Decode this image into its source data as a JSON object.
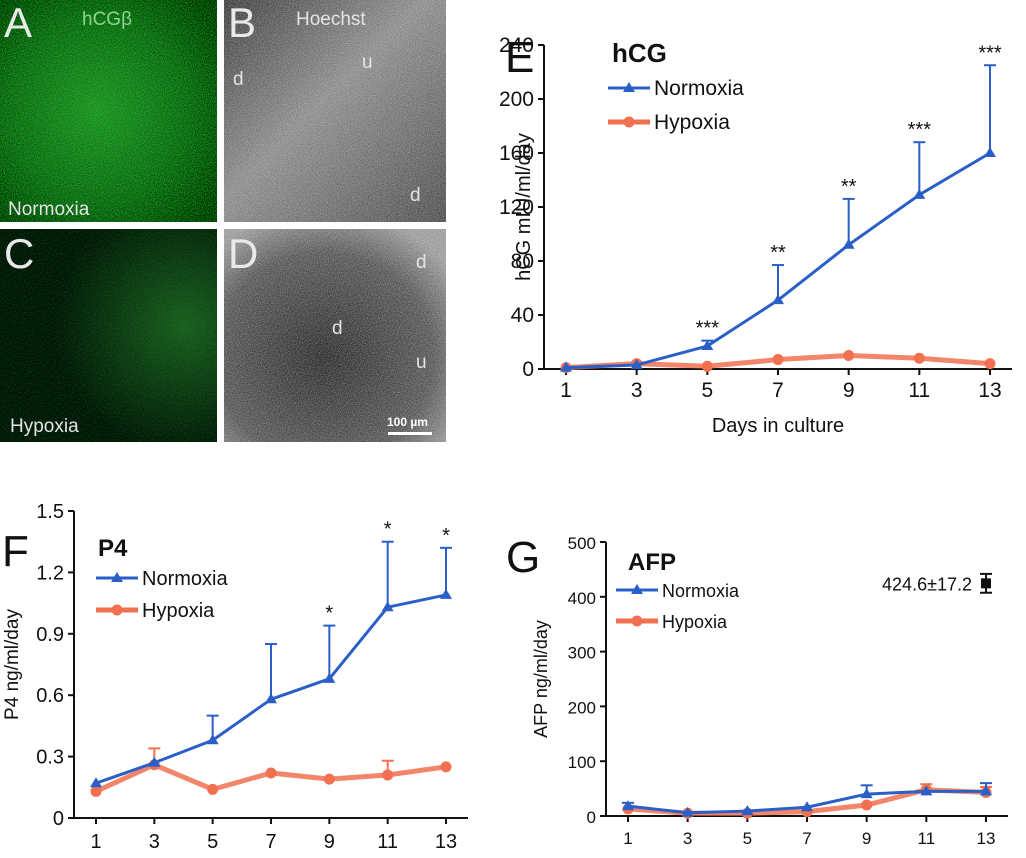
{
  "images": [
    {
      "letter": "A",
      "label": "hCGβ",
      "condition": "Normoxia",
      "tone": "green-bright"
    },
    {
      "letter": "B",
      "label": "Hoechst",
      "marks": [
        "d",
        "u",
        "d"
      ],
      "tone": "gray-light"
    },
    {
      "letter": "C",
      "condition": "Hypoxia",
      "tone": "green-dim"
    },
    {
      "letter": "D",
      "marks": [
        "d",
        "d",
        "u"
      ],
      "scale_bar": "100 µm",
      "tone": "gray-dark"
    }
  ],
  "colors": {
    "normoxia": "#2a5fc8",
    "hypoxia": "#f07050",
    "marker_424": "#111111"
  },
  "chart_data": [
    {
      "panel": "E",
      "type": "line",
      "title": "hCG",
      "xlabel": "Days in culture",
      "ylabel": "hCG mIU/ml/day",
      "x": [
        1,
        3,
        5,
        7,
        9,
        11,
        13
      ],
      "xticks": [
        "1",
        "3",
        "5",
        "7",
        "9",
        "11",
        "13"
      ],
      "ylim": [
        0,
        240
      ],
      "yticks": [
        "0",
        "40",
        "80",
        "120",
        "160",
        "200",
        "240"
      ],
      "ytick_values": [
        0,
        40,
        80,
        120,
        160,
        200,
        240
      ],
      "legend": "top-left",
      "series": [
        {
          "name": "Normoxia",
          "color": "#2a5fc8",
          "marker": "triangle",
          "values": [
            1,
            3,
            17,
            51,
            92,
            129,
            160
          ],
          "errors": [
            0,
            0,
            4,
            26,
            34,
            39,
            65
          ]
        },
        {
          "name": "Hypoxia",
          "color": "#f07050",
          "marker": "circle",
          "values": [
            1,
            4,
            2,
            7,
            10,
            8,
            4
          ],
          "errors": [
            0,
            0,
            0,
            0,
            0,
            0,
            0
          ]
        }
      ],
      "significance": [
        "",
        "",
        "***",
        "**",
        "**",
        "***",
        "***"
      ]
    },
    {
      "panel": "F",
      "type": "line",
      "title": "P4",
      "xlabel": "",
      "ylabel": "P4 ng/ml/day",
      "x": [
        1,
        3,
        5,
        7,
        9,
        11,
        13
      ],
      "xticks": [
        "1",
        "3",
        "5",
        "7",
        "9",
        "11",
        "13"
      ],
      "ylim": [
        0,
        1.5
      ],
      "yticks": [
        "0",
        "0.3",
        "0.6",
        "0.9",
        "1.2",
        "1.5"
      ],
      "ytick_values": [
        0,
        0.3,
        0.6,
        0.9,
        1.2,
        1.5
      ],
      "legend": "top-left",
      "series": [
        {
          "name": "Normoxia",
          "color": "#2a5fc8",
          "marker": "triangle",
          "values": [
            0.17,
            0.27,
            0.38,
            0.58,
            0.68,
            1.03,
            1.09
          ],
          "errors": [
            0,
            0,
            0.12,
            0.27,
            0.26,
            0.32,
            0.23
          ]
        },
        {
          "name": "Hypoxia",
          "color": "#f07050",
          "marker": "circle",
          "values": [
            0.13,
            0.26,
            0.14,
            0.22,
            0.19,
            0.21,
            0.25
          ],
          "errors": [
            0,
            0.08,
            0,
            0,
            0,
            0.07,
            0
          ]
        }
      ],
      "significance": [
        "",
        "",
        "",
        "",
        "*",
        "*",
        "*"
      ]
    },
    {
      "panel": "G",
      "type": "line",
      "title": "AFP",
      "xlabel": "",
      "ylabel": "AFP ng/ml/day",
      "x": [
        1,
        3,
        5,
        7,
        9,
        11,
        13
      ],
      "xticks": [
        "1",
        "3",
        "5",
        "7",
        "9",
        "11",
        "13"
      ],
      "ylim": [
        0,
        500
      ],
      "yticks": [
        "0",
        "100",
        "200",
        "300",
        "400",
        "500"
      ],
      "ytick_values": [
        0,
        100,
        200,
        300,
        400,
        500
      ],
      "legend": "top-left",
      "series": [
        {
          "name": "Normoxia",
          "color": "#2a5fc8",
          "marker": "triangle",
          "values": [
            18,
            6,
            9,
            16,
            40,
            45,
            45
          ],
          "errors": [
            6,
            0,
            0,
            0,
            16,
            0,
            15
          ]
        },
        {
          "name": "Hypoxia",
          "color": "#f07050",
          "marker": "circle",
          "values": [
            13,
            5,
            5,
            8,
            20,
            48,
            43
          ],
          "errors": [
            0,
            0,
            0,
            0,
            0,
            10,
            10
          ]
        }
      ],
      "reference_point": {
        "label": "424.6±17.2",
        "value": 424.6,
        "error": 17.2
      },
      "significance": [
        "",
        "",
        "",
        "",
        "",
        "",
        ""
      ]
    }
  ]
}
